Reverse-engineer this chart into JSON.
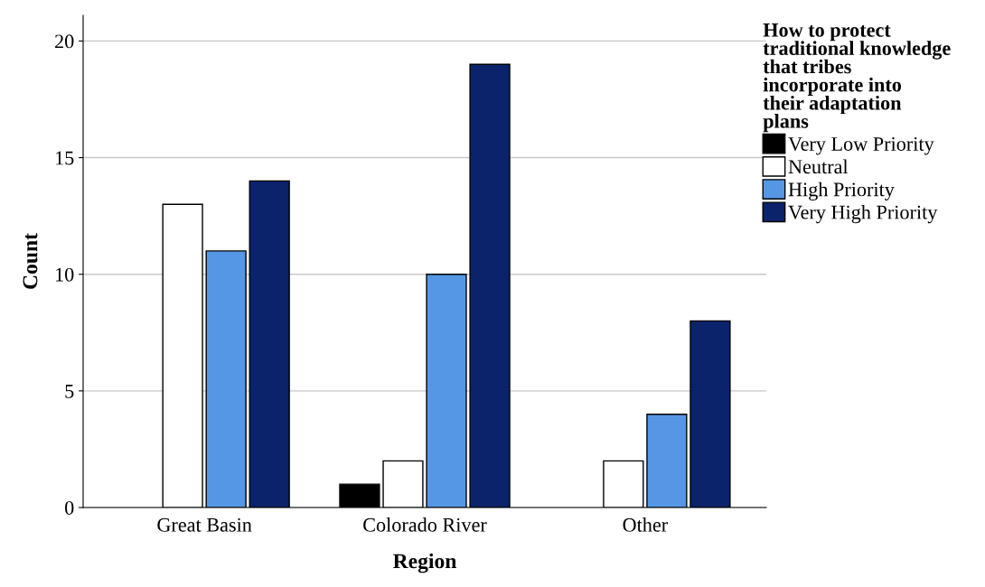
{
  "chart_data": {
    "type": "bar",
    "xlabel": "Region",
    "ylabel": "Count",
    "legend_title": "How to protect traditional knowledge that tribes incorporate into their adaptation plans",
    "categories": [
      "Great Basin",
      "Colorado River",
      "Other"
    ],
    "series": [
      {
        "name": "Very Low Priority",
        "color": "#000000",
        "values": [
          null,
          1,
          null
        ]
      },
      {
        "name": "Neutral",
        "color": "#ffffff",
        "values": [
          13,
          2,
          2
        ]
      },
      {
        "name": "High Priority",
        "color": "#5597e5",
        "values": [
          11,
          10,
          4
        ]
      },
      {
        "name": "Very High Priority",
        "color": "#0b236b",
        "values": [
          14,
          19,
          8
        ]
      }
    ],
    "ylim": [
      0,
      21.1
    ],
    "yticks": [
      0,
      5,
      10,
      15,
      20
    ],
    "grid": "y",
    "legend": "right"
  }
}
